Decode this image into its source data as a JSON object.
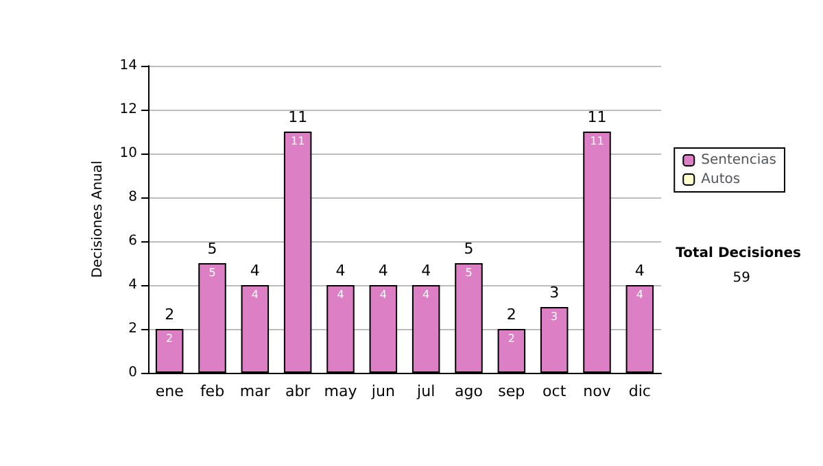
{
  "chart_data": {
    "type": "bar",
    "ylabel": "Decisiones Anual",
    "categories": [
      "ene",
      "feb",
      "mar",
      "abr",
      "may",
      "jun",
      "jul",
      "ago",
      "sep",
      "oct",
      "nov",
      "dic"
    ],
    "series": [
      {
        "name": "Sentencias",
        "color": "#dd7fc4",
        "values": [
          2,
          5,
          4,
          11,
          4,
          4,
          4,
          5,
          2,
          3,
          11,
          4
        ],
        "value_labels": [
          "2",
          "5",
          "4",
          "11",
          "4",
          "4",
          "4",
          "5",
          "2",
          "3",
          "11",
          "4"
        ]
      },
      {
        "name": "Autos",
        "color": "#ffffcc",
        "values": [
          0,
          0,
          0,
          0,
          0,
          0,
          0,
          0,
          0,
          0,
          0,
          0
        ]
      }
    ],
    "stacked": true,
    "totals": [
      "2",
      "5",
      "4",
      "11",
      "4",
      "4",
      "4",
      "5",
      "2",
      "3",
      "11",
      "4"
    ],
    "ylim": [
      0,
      14
    ],
    "yticks": [
      0,
      2,
      4,
      6,
      8,
      10,
      12,
      14
    ],
    "grid": "y",
    "legend": "right",
    "annotations": [
      "Total Decisiones",
      "59"
    ]
  }
}
